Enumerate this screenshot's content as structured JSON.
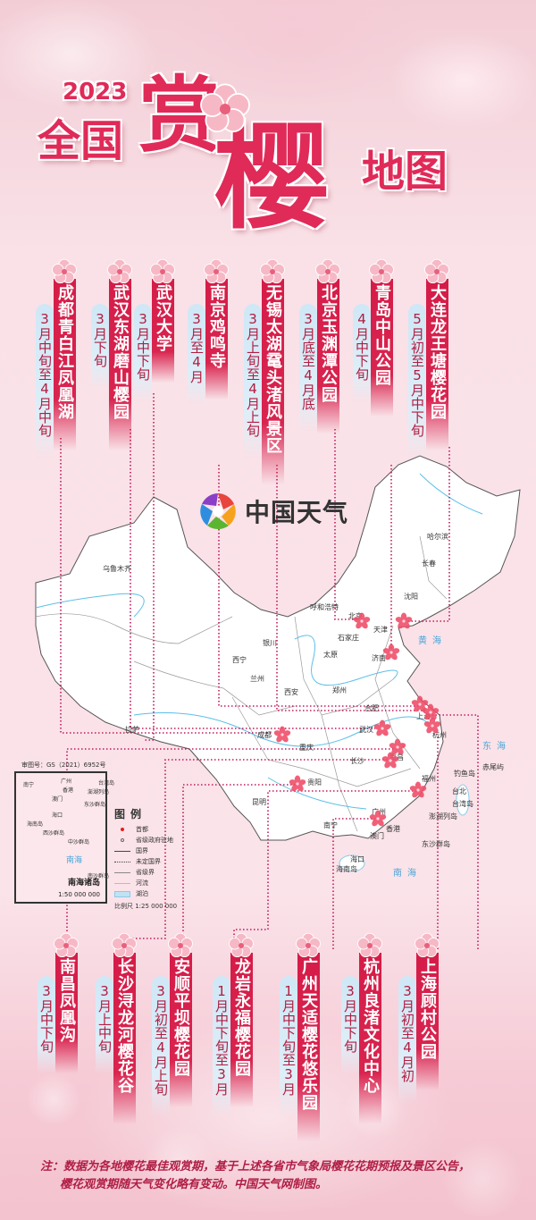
{
  "title": {
    "year": "2023",
    "part1": "全国",
    "part2": "赏",
    "part3": "樱",
    "part4": "地图"
  },
  "top_spots": [
    {
      "name": "成都青白江凤凰湖",
      "date": "3月中旬至4月中旬"
    },
    {
      "name": "武汉东湖磨山樱园",
      "date": "3月下旬"
    },
    {
      "name": "武汉大学",
      "date": "3月中下旬"
    },
    {
      "name": "南京鸡鸣寺",
      "date": "3月至4月"
    },
    {
      "name": "无锡太湖鼋头渚风景区",
      "date": "3月上旬至4月上旬"
    },
    {
      "name": "北京玉渊潭公园",
      "date": "3月底至4月底"
    },
    {
      "name": "青岛中山公园",
      "date": "4月中下旬"
    },
    {
      "name": "大连龙王塘樱花园",
      "date": "5月初至5月中下旬"
    }
  ],
  "bottom_spots": [
    {
      "name": "南昌凤凰沟",
      "date": "3月中下旬"
    },
    {
      "name": "长沙浔龙河樱花谷",
      "date": "3月上中旬"
    },
    {
      "name": "安顺平坝樱花园",
      "date": "3月初至4月上旬"
    },
    {
      "name": "龙岩永福樱花园",
      "date": "1月中下旬至3月"
    },
    {
      "name": "广州天适樱花悠乐园",
      "date": "1月中下旬至3月"
    },
    {
      "name": "杭州良渚文化中心",
      "date": "3月中下旬"
    },
    {
      "name": "上海顾村公园",
      "date": "3月初至4月初"
    }
  ],
  "map": {
    "logo_text": "中国天气",
    "cities": [
      "乌鲁木齐",
      "哈尔滨",
      "长春",
      "沈阳",
      "呼和浩特",
      "北京",
      "天津",
      "石家庄",
      "太原",
      "济南",
      "银川",
      "西宁",
      "兰州",
      "西安",
      "郑州",
      "合肥",
      "上海",
      "拉萨",
      "成都",
      "武汉",
      "杭州",
      "重庆",
      "长沙",
      "南昌",
      "贵阳",
      "福州",
      "昆明",
      "台北",
      "台湾岛",
      "钓鱼岛",
      "赤尾屿",
      "南宁",
      "广州",
      "香港",
      "澳门",
      "澎湖列岛",
      "东沙群岛",
      "海口",
      "海南岛"
    ],
    "seas": [
      "黄海",
      "东海",
      "南海"
    ],
    "review_no": "审图号：GS（2021）6952号",
    "inset": {
      "title": "南海诸岛",
      "scale": "1:50 000 000",
      "labels": [
        "南宁",
        "广州",
        "香港",
        "澳门",
        "台湾岛",
        "澎湖列岛",
        "东沙群岛",
        "海口",
        "海南岛",
        "西沙群岛",
        "中沙群岛",
        "南海",
        "南沙群岛"
      ]
    },
    "legend": {
      "title": "图例",
      "items": [
        "首都",
        "省级政府驻地",
        "国界",
        "未定国界",
        "省级界",
        "河流",
        "湖泊"
      ],
      "scale": "比例尺 1:25 000 000"
    },
    "colors": {
      "ribbon": "#d51c48",
      "date_pill": "#cfe7f6",
      "connector": "#c2185b",
      "flower": "#ef4f6a",
      "river": "#5bbfe8"
    }
  },
  "footnote": {
    "line1": "注：数据为各地樱花最佳观赏期，基于上述各省市气象局樱花花期预报及景区公告，",
    "line2": "樱花观赏期随天气变化略有变动。中国天气网制图。"
  }
}
